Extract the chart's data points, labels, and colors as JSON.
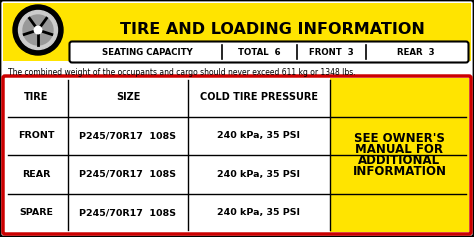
{
  "title": "TIRE AND LOADING INFORMATION",
  "seating_label": "SEATING CAPACITY",
  "total_label": "TOTAL",
  "total_val": "6",
  "front_label": "FRONT",
  "front_val": "3",
  "rear_label": "REAR",
  "rear_val": "3",
  "warning_text": "The combined weight of the occupants and cargo should never exceed 611 kg or 1348 lbs.",
  "table_headers": [
    "TIRE",
    "SIZE",
    "COLD TIRE PRESSURE"
  ],
  "table_rows": [
    [
      "FRONT",
      "P245/70R17  108S",
      "240 kPa, 35 PSI"
    ],
    [
      "REAR",
      "P245/70R17  108S",
      "240 kPa, 35 PSI"
    ],
    [
      "SPARE",
      "P245/70R17  108S",
      "240 kPa, 35 PSI"
    ]
  ],
  "side_note": [
    "SEE OWNER'S",
    "MANUAL FOR",
    "ADDITIONAL",
    "INFORMATION"
  ],
  "yellow": "#FFE400",
  "red_border": "#cc0000",
  "black": "#000000",
  "white": "#ffffff",
  "dark_gray": "#555555",
  "title_fontsize": 11.5,
  "seat_fontsize": 6.2,
  "warning_fontsize": 5.5,
  "header_fontsize": 7.0,
  "cell_fontsize": 6.8,
  "side_fontsize": 8.5
}
